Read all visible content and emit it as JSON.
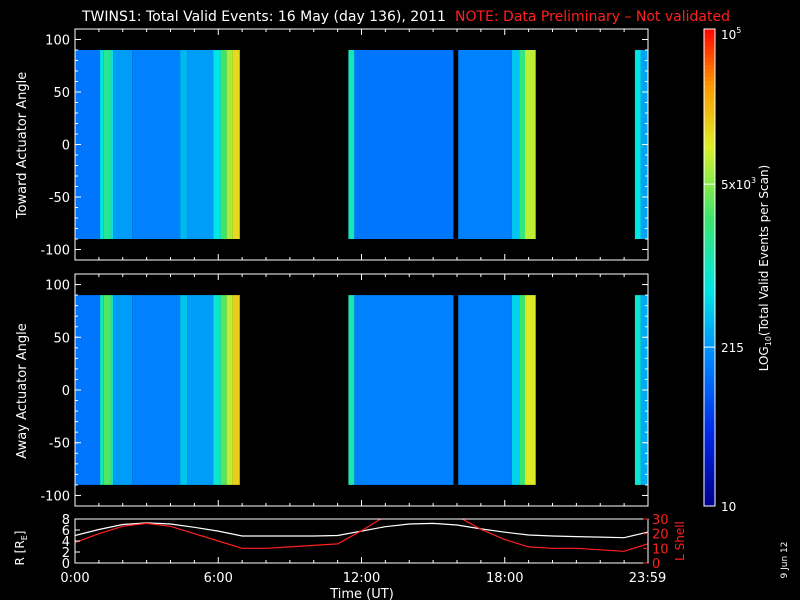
{
  "title": {
    "main": "TWINS1: Total Valid Events: 16 May (day 136), 2011",
    "note": "NOTE: Data Preliminary – Not validated"
  },
  "stamp": "9 Jun 12",
  "colors": {
    "background": "#000000",
    "foreground": "#ffffff",
    "note": "#ff2020",
    "r_line": "#ffffff",
    "lshell_line": "#ff2020"
  },
  "chart_data": [
    {
      "type": "heatmap",
      "name": "toward",
      "ylabel": "Toward Actuator Angle",
      "ylim": [
        -110,
        110
      ],
      "yticks": [
        100,
        50,
        0,
        -50,
        -100
      ],
      "xlim_hours": [
        0,
        24
      ],
      "data_ylim": [
        -90,
        90
      ],
      "segments": [
        {
          "start": 0.0,
          "end": 6.9
        },
        {
          "start": 11.45,
          "end": 15.85
        },
        {
          "start": 16.05,
          "end": 19.3
        },
        {
          "start": 23.45,
          "end": 24.0
        }
      ],
      "bands": [
        {
          "start": 0.0,
          "end": 1.05,
          "level": 0.28
        },
        {
          "start": 1.05,
          "end": 1.2,
          "level": 0.45
        },
        {
          "start": 1.2,
          "end": 1.5,
          "level": 0.55
        },
        {
          "start": 1.5,
          "end": 1.6,
          "level": 0.45
        },
        {
          "start": 1.6,
          "end": 2.4,
          "level": 0.34
        },
        {
          "start": 2.4,
          "end": 4.4,
          "level": 0.3
        },
        {
          "start": 4.4,
          "end": 4.7,
          "level": 0.38
        },
        {
          "start": 4.7,
          "end": 5.8,
          "level": 0.34
        },
        {
          "start": 5.8,
          "end": 6.1,
          "level": 0.45
        },
        {
          "start": 6.1,
          "end": 6.35,
          "level": 0.6
        },
        {
          "start": 6.35,
          "end": 6.6,
          "level": 0.7
        },
        {
          "start": 6.6,
          "end": 6.9,
          "level": 0.78
        },
        {
          "start": 11.45,
          "end": 11.7,
          "level": 0.5
        },
        {
          "start": 11.7,
          "end": 15.85,
          "level": 0.28
        },
        {
          "start": 16.05,
          "end": 18.3,
          "level": 0.3
        },
        {
          "start": 18.3,
          "end": 18.6,
          "level": 0.4
        },
        {
          "start": 18.6,
          "end": 18.85,
          "level": 0.58
        },
        {
          "start": 18.85,
          "end": 19.3,
          "level": 0.72
        },
        {
          "start": 23.45,
          "end": 23.7,
          "level": 0.45
        },
        {
          "start": 23.7,
          "end": 24.0,
          "level": 0.35
        }
      ]
    },
    {
      "type": "heatmap",
      "name": "away",
      "ylabel": "Away Actuator Angle",
      "ylim": [
        -110,
        110
      ],
      "yticks": [
        100,
        50,
        0,
        -50,
        -100
      ],
      "xlim_hours": [
        0,
        24
      ],
      "data_ylim": [
        -90,
        90
      ],
      "segments": [
        {
          "start": 0.0,
          "end": 6.9
        },
        {
          "start": 11.45,
          "end": 15.85
        },
        {
          "start": 16.05,
          "end": 19.3
        },
        {
          "start": 23.45,
          "end": 24.0
        }
      ],
      "bands": [
        {
          "start": 0.0,
          "end": 1.05,
          "level": 0.28
        },
        {
          "start": 1.05,
          "end": 1.2,
          "level": 0.5
        },
        {
          "start": 1.2,
          "end": 1.5,
          "level": 0.62
        },
        {
          "start": 1.5,
          "end": 1.6,
          "level": 0.48
        },
        {
          "start": 1.6,
          "end": 2.4,
          "level": 0.34
        },
        {
          "start": 2.4,
          "end": 4.4,
          "level": 0.3
        },
        {
          "start": 4.4,
          "end": 4.7,
          "level": 0.4
        },
        {
          "start": 4.7,
          "end": 5.8,
          "level": 0.34
        },
        {
          "start": 5.8,
          "end": 6.1,
          "level": 0.48
        },
        {
          "start": 6.1,
          "end": 6.35,
          "level": 0.62
        },
        {
          "start": 6.35,
          "end": 6.6,
          "level": 0.72
        },
        {
          "start": 6.6,
          "end": 6.9,
          "level": 0.8
        },
        {
          "start": 11.45,
          "end": 11.7,
          "level": 0.52
        },
        {
          "start": 11.7,
          "end": 15.85,
          "level": 0.3
        },
        {
          "start": 16.05,
          "end": 18.3,
          "level": 0.3
        },
        {
          "start": 18.3,
          "end": 18.6,
          "level": 0.42
        },
        {
          "start": 18.6,
          "end": 18.85,
          "level": 0.6
        },
        {
          "start": 18.85,
          "end": 19.3,
          "level": 0.76
        },
        {
          "start": 23.45,
          "end": 23.7,
          "level": 0.48
        },
        {
          "start": 23.7,
          "end": 24.0,
          "level": 0.36
        }
      ]
    },
    {
      "type": "line",
      "name": "orbit",
      "ylabel_left": "R [RE]",
      "ylabel_left_sub": "E",
      "ylabel_right": "L Shell",
      "yleft_lim": [
        0,
        8
      ],
      "yleft_ticks": [
        0,
        2,
        4,
        6,
        8
      ],
      "yright_lim": [
        0,
        30
      ],
      "yright_ticks": [
        0,
        10,
        20,
        30
      ],
      "xlabel": "Time (UT)",
      "xticks": [
        {
          "hour": 0,
          "label": "0:00"
        },
        {
          "hour": 6,
          "label": "6:00"
        },
        {
          "hour": 12,
          "label": "12:00"
        },
        {
          "hour": 18,
          "label": "18:00"
        },
        {
          "hour": 23.98,
          "label": "23:59"
        }
      ],
      "series": [
        {
          "name": "R",
          "axis": "left",
          "x": [
            0,
            1,
            2,
            3,
            4,
            5,
            6,
            7,
            8,
            9,
            10,
            11,
            12,
            13,
            14,
            15,
            16,
            17,
            18,
            19,
            20,
            21,
            22,
            23,
            23.98
          ],
          "y": [
            5.0,
            6.1,
            7.0,
            7.3,
            7.1,
            6.5,
            5.8,
            4.9,
            4.9,
            4.9,
            4.9,
            5.0,
            5.8,
            6.6,
            7.1,
            7.2,
            6.9,
            6.2,
            5.6,
            5.1,
            4.9,
            4.8,
            4.7,
            4.6,
            5.6
          ]
        },
        {
          "name": "L Shell",
          "axis": "right",
          "x": [
            0,
            1,
            2,
            3,
            4,
            5,
            6,
            7,
            8,
            9,
            10,
            11,
            12,
            13,
            16,
            17,
            18,
            19,
            20,
            21,
            22,
            23,
            23.98
          ],
          "y": [
            14,
            20,
            25,
            27,
            25,
            20,
            15,
            10,
            10,
            11,
            12,
            13,
            22,
            32,
            32,
            23,
            16,
            11,
            10,
            10,
            9,
            8,
            13
          ]
        }
      ]
    },
    {
      "type": "colorbar",
      "label": "LOG10(Total Valid Events per Scan)",
      "label_base": "LOG",
      "label_sub": "10",
      "label_rest": "(Total Valid Events per Scan)",
      "scale": "log",
      "range": [
        10,
        100000
      ],
      "ticks": [
        {
          "value": 100000,
          "base": "10",
          "sup": "5"
        },
        {
          "value": 5000,
          "base": "5x10",
          "sup": "3"
        },
        {
          "value": 215,
          "base": "215",
          "sup": ""
        },
        {
          "value": 10,
          "base": "10",
          "sup": ""
        }
      ]
    }
  ]
}
